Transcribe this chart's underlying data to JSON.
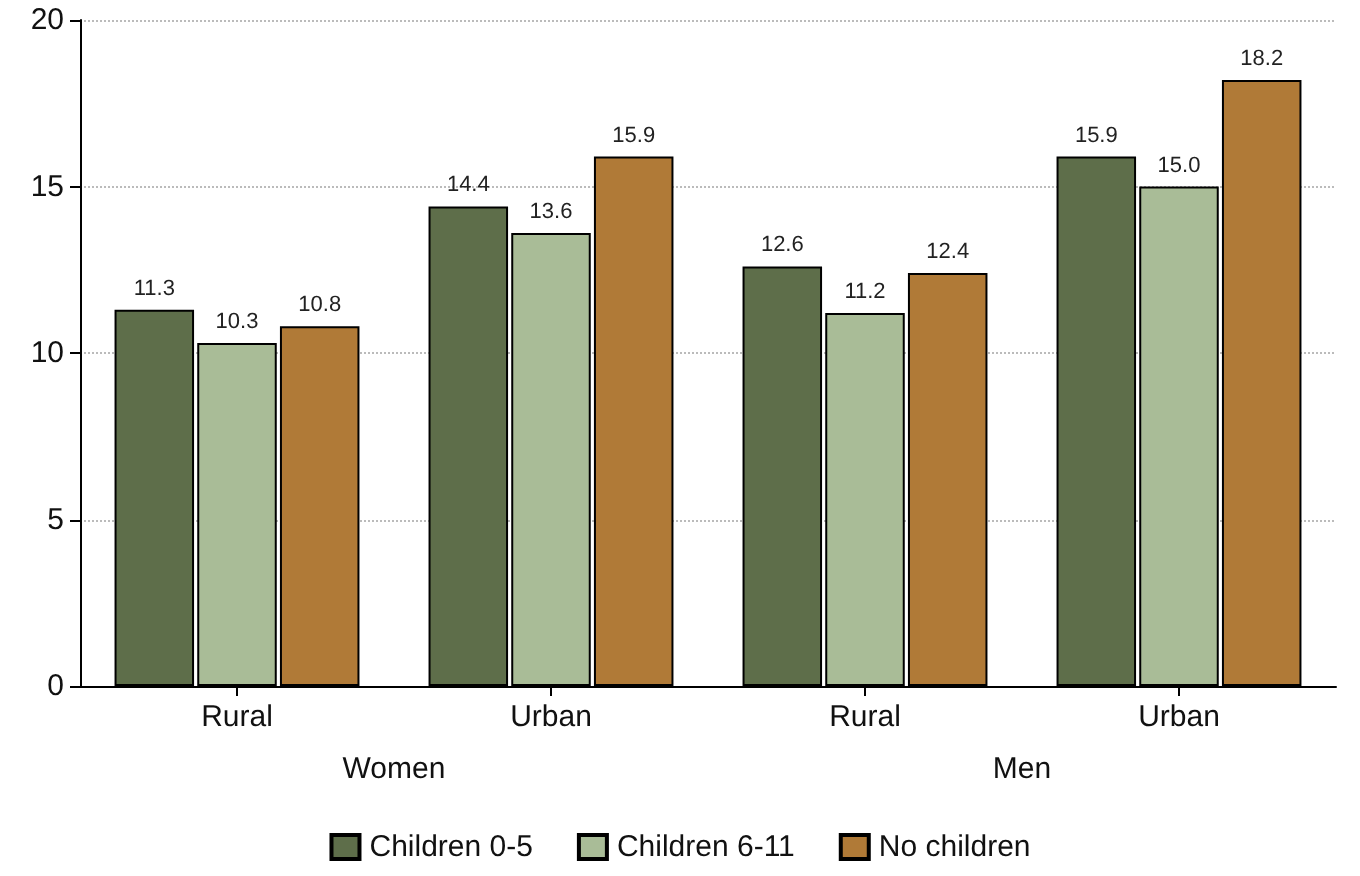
{
  "chart_data": {
    "type": "bar",
    "categories": [
      "Rural",
      "Urban",
      "Rural",
      "Urban"
    ],
    "series": [
      {
        "name": "Children 0-5",
        "color": "#5e6e4a",
        "values": [
          11.3,
          14.4,
          12.6,
          15.9
        ],
        "value_labels": [
          "11.3",
          "14.4",
          "12.6",
          "15.9"
        ]
      },
      {
        "name": "Children 6-11",
        "color": "#a9bc97",
        "values": [
          10.3,
          13.6,
          11.2,
          15.0
        ],
        "value_labels": [
          "10.3",
          "13.6",
          "11.2",
          "15.0"
        ]
      },
      {
        "name": "No children",
        "color": "#b07a37",
        "values": [
          10.8,
          15.9,
          12.4,
          18.2
        ],
        "value_labels": [
          "10.8",
          "15.9",
          "12.4",
          "18.2"
        ]
      }
    ],
    "annotations": [
      "Women",
      "Men"
    ],
    "ylim": [
      0,
      20
    ],
    "yticks": [
      0,
      5,
      10,
      15,
      20
    ],
    "grid": "y",
    "legend": "bottom"
  }
}
